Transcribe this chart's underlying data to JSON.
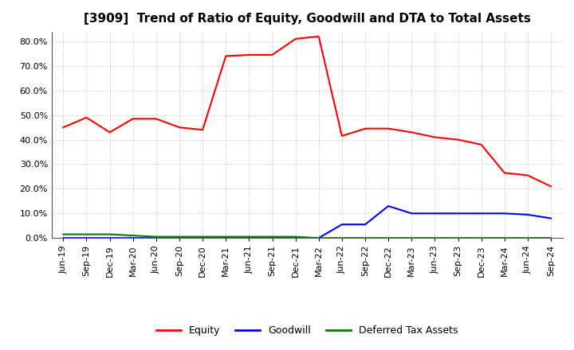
{
  "title": "[3909]  Trend of Ratio of Equity, Goodwill and DTA to Total Assets",
  "x_labels": [
    "Jun-19",
    "Sep-19",
    "Dec-19",
    "Mar-20",
    "Jun-20",
    "Sep-20",
    "Dec-20",
    "Mar-21",
    "Jun-21",
    "Sep-21",
    "Dec-21",
    "Mar-22",
    "Jun-22",
    "Sep-22",
    "Dec-22",
    "Mar-23",
    "Jun-23",
    "Sep-23",
    "Dec-23",
    "Mar-24",
    "Jun-24",
    "Sep-24"
  ],
  "equity": [
    0.45,
    0.49,
    0.43,
    0.485,
    0.485,
    0.45,
    0.44,
    0.74,
    0.745,
    0.745,
    0.81,
    0.82,
    0.415,
    0.445,
    0.445,
    0.43,
    0.41,
    0.4,
    0.38,
    0.265,
    0.255,
    0.21
  ],
  "goodwill": [
    0.0,
    0.0,
    0.0,
    0.0,
    0.0,
    0.0,
    0.0,
    0.0,
    0.0,
    0.0,
    0.0,
    0.0,
    0.055,
    0.055,
    0.13,
    0.1,
    0.1,
    0.1,
    0.1,
    0.1,
    0.095,
    0.08
  ],
  "dta": [
    0.015,
    0.015,
    0.015,
    0.01,
    0.005,
    0.005,
    0.005,
    0.005,
    0.005,
    0.005,
    0.005,
    0.0,
    0.0,
    0.0,
    0.0,
    0.0,
    0.0,
    0.0,
    0.0,
    0.0,
    0.0,
    0.0
  ],
  "equity_color": "#FF0000",
  "goodwill_color": "#0000FF",
  "dta_color": "#008000",
  "ylim_max": 0.84,
  "yticks": [
    0.0,
    0.1,
    0.2,
    0.3,
    0.4,
    0.5,
    0.6,
    0.7,
    0.8
  ],
  "grid_color": "#bbbbbb",
  "background_color": "#ffffff",
  "plot_bg_color": "#ffffff",
  "legend_labels": [
    "Equity",
    "Goodwill",
    "Deferred Tax Assets"
  ],
  "title_fontsize": 11,
  "axis_fontsize": 8,
  "legend_fontsize": 9
}
